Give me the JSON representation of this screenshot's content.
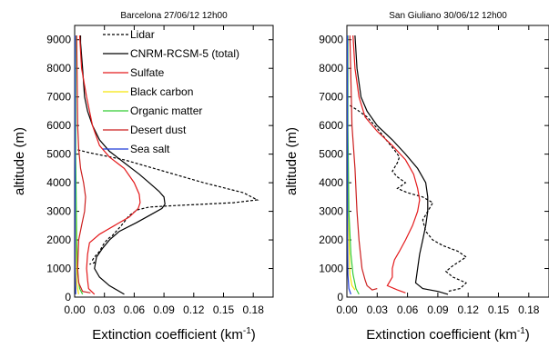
{
  "chart_data": [
    {
      "type": "line",
      "title": "Barcelona 27/06/12 12h00",
      "xlabel": "Extinction coefficient (km",
      "xlabel_sup": "-1",
      "xlabel_end": ")",
      "ylabel": "altitude (m)",
      "xlim": [
        0,
        0.2
      ],
      "ylim": [
        0,
        9500
      ],
      "xticks": [
        "0.00",
        "0.03",
        "0.06",
        "0.09",
        "0.12",
        "0.15",
        "0.18"
      ],
      "xtick_values": [
        0,
        0.03,
        0.06,
        0.09,
        0.12,
        0.15,
        0.18
      ],
      "yticks": [
        "0",
        "1000",
        "2000",
        "3000",
        "4000",
        "5000",
        "6000",
        "7000",
        "8000",
        "9000"
      ],
      "ytick_values": [
        0,
        1000,
        2000,
        3000,
        4000,
        5000,
        6000,
        7000,
        8000,
        9000
      ],
      "legend": [
        {
          "label": "Lidar",
          "color": "#000000",
          "dash": true
        },
        {
          "label": "CNRM-RCSM-5 (total)",
          "color": "#000000",
          "dash": false
        },
        {
          "label": "Sulfate",
          "color": "#e41a1c",
          "dash": false
        },
        {
          "label": "Black carbon",
          "color": "#f5e50a",
          "dash": false
        },
        {
          "label": "Organic matter",
          "color": "#33cc33",
          "dash": false
        },
        {
          "label": "Desert dust",
          "color": "#cc1f1f",
          "dash": false
        },
        {
          "label": "Sea salt",
          "color": "#1f3bd6",
          "dash": false
        }
      ],
      "series": [
        {
          "name": "Lidar",
          "color": "#000000",
          "dash": true,
          "points": [
            [
              0.003,
              5150
            ],
            [
              0.015,
              5050
            ],
            [
              0.05,
              4800
            ],
            [
              0.09,
              4400
            ],
            [
              0.13,
              4000
            ],
            [
              0.17,
              3650
            ],
            [
              0.184,
              3400
            ],
            [
              0.16,
              3300
            ],
            [
              0.13,
              3250
            ],
            [
              0.1,
              3200
            ],
            [
              0.075,
              3150
            ],
            [
              0.063,
              3050
            ],
            [
              0.055,
              2850
            ],
            [
              0.047,
              2500
            ],
            [
              0.038,
              2150
            ],
            [
              0.034,
              2050
            ],
            [
              0.03,
              1900
            ],
            [
              0.025,
              1600
            ],
            [
              0.02,
              1400
            ],
            [
              0.018,
              1300
            ],
            [
              0.02,
              1200
            ],
            [
              0.015,
              1150
            ]
          ]
        },
        {
          "name": "CNRM-RCSM-5 (total)",
          "color": "#000000",
          "dash": false,
          "points": [
            [
              0.006,
              9150
            ],
            [
              0.006,
              8900
            ],
            [
              0.008,
              8000
            ],
            [
              0.01,
              7000
            ],
            [
              0.013,
              6500
            ],
            [
              0.018,
              6000
            ],
            [
              0.025,
              5500
            ],
            [
              0.035,
              5100
            ],
            [
              0.05,
              4700
            ],
            [
              0.065,
              4300
            ],
            [
              0.075,
              4000
            ],
            [
              0.085,
              3700
            ],
            [
              0.09,
              3500
            ],
            [
              0.091,
              3250
            ],
            [
              0.088,
              3100
            ],
            [
              0.075,
              2850
            ],
            [
              0.062,
              2600
            ],
            [
              0.045,
              2300
            ],
            [
              0.035,
              2000
            ],
            [
              0.028,
              1700
            ],
            [
              0.022,
              1400
            ],
            [
              0.02,
              1000
            ],
            [
              0.025,
              700
            ],
            [
              0.035,
              400
            ],
            [
              0.05,
              100
            ]
          ]
        },
        {
          "name": "Sulfate",
          "color": "#e41a1c",
          "dash": false,
          "points": [
            [
              0.005,
              9150
            ],
            [
              0.007,
              8000
            ],
            [
              0.012,
              7000
            ],
            [
              0.018,
              6000
            ],
            [
              0.025,
              5300
            ],
            [
              0.035,
              4900
            ],
            [
              0.05,
              4500
            ],
            [
              0.06,
              4000
            ],
            [
              0.065,
              3600
            ],
            [
              0.066,
              3300
            ],
            [
              0.064,
              3100
            ],
            [
              0.055,
              2800
            ],
            [
              0.04,
              2500
            ],
            [
              0.025,
              2200
            ],
            [
              0.015,
              1900
            ],
            [
              0.013,
              1500
            ],
            [
              0.012,
              1000
            ],
            [
              0.013,
              600
            ],
            [
              0.014,
              300
            ],
            [
              0.02,
              100
            ]
          ]
        },
        {
          "name": "Black carbon",
          "color": "#f5e50a",
          "dash": false,
          "points": [
            [
              0.0005,
              9150
            ],
            [
              0.0005,
              5000
            ],
            [
              0.001,
              2000
            ],
            [
              0.002,
              500
            ],
            [
              0.004,
              100
            ]
          ]
        },
        {
          "name": "Organic matter",
          "color": "#33cc33",
          "dash": false,
          "points": [
            [
              0.001,
              9150
            ],
            [
              0.001,
              5000
            ],
            [
              0.002,
              2000
            ],
            [
              0.003,
              800
            ],
            [
              0.005,
              300
            ],
            [
              0.008,
              100
            ]
          ]
        },
        {
          "name": "Desert dust",
          "color": "#cc1f1f",
          "dash": false,
          "points": [
            [
              0.002,
              9150
            ],
            [
              0.003,
              6000
            ],
            [
              0.004,
              5200
            ],
            [
              0.006,
              4500
            ],
            [
              0.009,
              4000
            ],
            [
              0.011,
              3500
            ],
            [
              0.01,
              3000
            ],
            [
              0.007,
              2500
            ],
            [
              0.004,
              2000
            ],
            [
              0.003,
              1000
            ],
            [
              0.004,
              500
            ],
            [
              0.008,
              200
            ],
            [
              0.016,
              150
            ]
          ]
        },
        {
          "name": "Sea salt",
          "color": "#1f3bd6",
          "dash": false,
          "points": [
            [
              0.0005,
              9150
            ],
            [
              0.0005,
              1000
            ],
            [
              0.001,
              300
            ],
            [
              0.001,
              100
            ]
          ]
        }
      ]
    },
    {
      "type": "line",
      "title": "San Giuliano 30/06/12 12h00",
      "xlabel": "Extinction coefficient (km",
      "xlabel_sup": "-1",
      "xlabel_end": ")",
      "ylabel": "altitude (m)",
      "xlim": [
        0,
        0.2
      ],
      "ylim": [
        0,
        9500
      ],
      "xticks": [
        "0.00",
        "0.03",
        "0.06",
        "0.09",
        "0.12",
        "0.15",
        "0.18"
      ],
      "xtick_values": [
        0,
        0.03,
        0.06,
        0.09,
        0.12,
        0.15,
        0.18
      ],
      "yticks": [
        "0",
        "1000",
        "2000",
        "3000",
        "4000",
        "5000",
        "6000",
        "7000",
        "8000",
        "9000"
      ],
      "ytick_values": [
        0,
        1000,
        2000,
        3000,
        4000,
        5000,
        6000,
        7000,
        8000,
        9000
      ],
      "series": [
        {
          "name": "Lidar",
          "color": "#000000",
          "dash": true,
          "points": [
            [
              0.003,
              6700
            ],
            [
              0.01,
              6550
            ],
            [
              0.02,
              6300
            ],
            [
              0.03,
              5900
            ],
            [
              0.04,
              5450
            ],
            [
              0.048,
              5100
            ],
            [
              0.052,
              4900
            ],
            [
              0.05,
              4700
            ],
            [
              0.045,
              4400
            ],
            [
              0.05,
              4200
            ],
            [
              0.058,
              4000
            ],
            [
              0.05,
              3800
            ],
            [
              0.06,
              3650
            ],
            [
              0.075,
              3500
            ],
            [
              0.085,
              3300
            ],
            [
              0.08,
              3000
            ],
            [
              0.075,
              2700
            ],
            [
              0.078,
              2300
            ],
            [
              0.085,
              2000
            ],
            [
              0.095,
              1800
            ],
            [
              0.11,
              1600
            ],
            [
              0.118,
              1400
            ],
            [
              0.105,
              1100
            ],
            [
              0.098,
              900
            ],
            [
              0.105,
              700
            ],
            [
              0.118,
              500
            ],
            [
              0.112,
              300
            ],
            [
              0.1,
              200
            ]
          ]
        },
        {
          "name": "CNRM-RCSM-5 (total)",
          "color": "#000000",
          "dash": false,
          "points": [
            [
              0.008,
              9150
            ],
            [
              0.01,
              8000
            ],
            [
              0.014,
              7000
            ],
            [
              0.02,
              6500
            ],
            [
              0.03,
              6000
            ],
            [
              0.045,
              5500
            ],
            [
              0.058,
              5000
            ],
            [
              0.07,
              4500
            ],
            [
              0.078,
              4000
            ],
            [
              0.08,
              3500
            ],
            [
              0.08,
              3000
            ],
            [
              0.078,
              2500
            ],
            [
              0.075,
              2000
            ],
            [
              0.072,
              1500
            ],
            [
              0.07,
              1000
            ],
            [
              0.068,
              500
            ],
            [
              0.075,
              300
            ],
            [
              0.09,
              200
            ],
            [
              0.1,
              100
            ]
          ]
        },
        {
          "name": "Sulfate",
          "color": "#e41a1c",
          "dash": false,
          "points": [
            [
              0.006,
              9150
            ],
            [
              0.008,
              8000
            ],
            [
              0.012,
              7000
            ],
            [
              0.018,
              6300
            ],
            [
              0.03,
              5800
            ],
            [
              0.045,
              5300
            ],
            [
              0.058,
              4800
            ],
            [
              0.066,
              4300
            ],
            [
              0.07,
              3800
            ],
            [
              0.072,
              3400
            ],
            [
              0.07,
              3000
            ],
            [
              0.065,
              2500
            ],
            [
              0.058,
              2000
            ],
            [
              0.052,
              1600
            ],
            [
              0.047,
              1300
            ],
            [
              0.045,
              1000
            ],
            [
              0.045,
              700
            ],
            [
              0.04,
              400
            ],
            [
              0.05,
              250
            ],
            [
              0.058,
              150
            ]
          ]
        },
        {
          "name": "Black carbon",
          "color": "#f5e50a",
          "dash": false,
          "points": [
            [
              0.0005,
              9150
            ],
            [
              0.0008,
              5000
            ],
            [
              0.002,
              2000
            ],
            [
              0.003,
              800
            ],
            [
              0.005,
              400
            ],
            [
              0.008,
              250
            ]
          ]
        },
        {
          "name": "Organic matter",
          "color": "#33cc33",
          "dash": false,
          "points": [
            [
              0.001,
              9150
            ],
            [
              0.001,
              6000
            ],
            [
              0.002,
              3000
            ],
            [
              0.004,
              1500
            ],
            [
              0.006,
              800
            ],
            [
              0.009,
              300
            ],
            [
              0.012,
              100
            ]
          ]
        },
        {
          "name": "Desert dust",
          "color": "#cc1f1f",
          "dash": false,
          "points": [
            [
              0.003,
              9150
            ],
            [
              0.005,
              6000
            ],
            [
              0.008,
              4500
            ],
            [
              0.01,
              3000
            ],
            [
              0.012,
              2000
            ],
            [
              0.015,
              1000
            ],
            [
              0.018,
              600
            ],
            [
              0.02,
              400
            ],
            [
              0.025,
              250
            ],
            [
              0.03,
              300
            ]
          ]
        },
        {
          "name": "Sea salt",
          "color": "#1f3bd6",
          "dash": false,
          "points": [
            [
              0.0005,
              9150
            ],
            [
              0.0006,
              2000
            ],
            [
              0.001,
              800
            ],
            [
              0.002,
              300
            ],
            [
              0.004,
              100
            ]
          ]
        }
      ]
    }
  ]
}
